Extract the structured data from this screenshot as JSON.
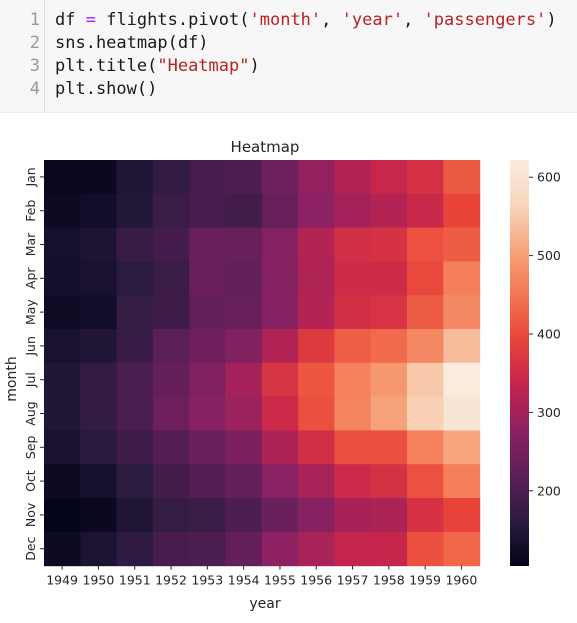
{
  "code_cell": {
    "lines": [
      {
        "no": "1",
        "parts": [
          {
            "t": "df ",
            "c": "plain"
          },
          {
            "t": "=",
            "c": "op"
          },
          {
            "t": " flights.pivot(",
            "c": "plain"
          },
          {
            "t": "'month'",
            "c": "str"
          },
          {
            "t": ", ",
            "c": "plain"
          },
          {
            "t": "'year'",
            "c": "str"
          },
          {
            "t": ", ",
            "c": "plain"
          },
          {
            "t": "'passengers'",
            "c": "str"
          },
          {
            "t": ")",
            "c": "plain"
          }
        ]
      },
      {
        "no": "2",
        "parts": [
          {
            "t": "sns.heatmap(df)",
            "c": "plain"
          }
        ]
      },
      {
        "no": "3",
        "parts": [
          {
            "t": "plt.title(",
            "c": "plain"
          },
          {
            "t": "\"Heatmap\"",
            "c": "str"
          },
          {
            "t": ")",
            "c": "plain"
          }
        ]
      },
      {
        "no": "4",
        "parts": [
          {
            "t": "plt.show()",
            "c": "plain"
          }
        ]
      }
    ],
    "colors": {
      "background": "#f7f7f7",
      "operator": "#aa22ff",
      "string": "#ba2121",
      "line_number": "#999999"
    }
  },
  "chart_data": {
    "type": "heatmap",
    "title": "Heatmap",
    "xlabel": "year",
    "ylabel": "month",
    "x": [
      "1949",
      "1950",
      "1951",
      "1952",
      "1953",
      "1954",
      "1955",
      "1956",
      "1957",
      "1958",
      "1959",
      "1960"
    ],
    "y": [
      "Jan",
      "Feb",
      "Mar",
      "Apr",
      "May",
      "Jun",
      "Jul",
      "Aug",
      "Sep",
      "Oct",
      "Nov",
      "Dec"
    ],
    "values": [
      [
        112,
        115,
        145,
        171,
        196,
        204,
        242,
        284,
        315,
        340,
        360,
        417
      ],
      [
        118,
        126,
        150,
        180,
        196,
        188,
        233,
        277,
        301,
        318,
        342,
        391
      ],
      [
        132,
        141,
        178,
        193,
        236,
        235,
        267,
        317,
        356,
        362,
        406,
        419
      ],
      [
        129,
        135,
        163,
        181,
        235,
        227,
        269,
        313,
        348,
        348,
        396,
        461
      ],
      [
        121,
        125,
        172,
        183,
        229,
        234,
        270,
        318,
        355,
        363,
        420,
        472
      ],
      [
        135,
        149,
        178,
        218,
        243,
        264,
        315,
        374,
        422,
        435,
        472,
        535
      ],
      [
        148,
        170,
        199,
        230,
        264,
        302,
        364,
        413,
        465,
        491,
        548,
        622
      ],
      [
        148,
        170,
        199,
        242,
        272,
        293,
        347,
        405,
        467,
        505,
        559,
        606
      ],
      [
        136,
        158,
        184,
        209,
        237,
        259,
        312,
        355,
        404,
        404,
        463,
        508
      ],
      [
        119,
        133,
        162,
        191,
        211,
        229,
        274,
        306,
        347,
        359,
        407,
        461
      ],
      [
        104,
        114,
        146,
        172,
        180,
        203,
        237,
        271,
        305,
        310,
        362,
        390
      ],
      [
        118,
        140,
        166,
        194,
        201,
        229,
        278,
        306,
        336,
        337,
        405,
        432
      ]
    ],
    "colorbar": {
      "min": 104,
      "max": 622,
      "ticks": [
        200,
        300,
        400,
        500,
        600
      ],
      "colormap": "rocket"
    },
    "grid": false,
    "colormap_stops": [
      "#03051a",
      "#2b1b3f",
      "#5b1f57",
      "#8c2163",
      "#c3244d",
      "#e8443a",
      "#f37651",
      "#f6a47b",
      "#f8d6bc",
      "#faebdd"
    ]
  }
}
